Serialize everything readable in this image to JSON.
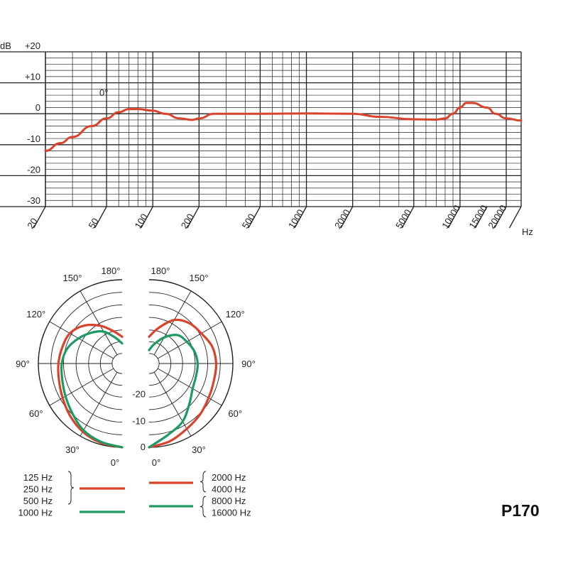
{
  "model": "P170",
  "colors": {
    "red": "#d9432b",
    "green": "#1e9a62",
    "grid": "#222222"
  },
  "chart_data": [
    {
      "type": "line",
      "x_unit_label": "Hz",
      "y_unit_label": "dB",
      "x_scale": "log",
      "xlim": [
        20,
        25000
      ],
      "ylim": [
        -30,
        20
      ],
      "grid": true,
      "x_ticks": [
        {
          "value": 20,
          "label": "20"
        },
        {
          "value": 50,
          "label": "50"
        },
        {
          "value": 100,
          "label": "100"
        },
        {
          "value": 200,
          "label": "200"
        },
        {
          "value": 500,
          "label": "500"
        },
        {
          "value": 1000,
          "label": "1000"
        },
        {
          "value": 2000,
          "label": "2000"
        },
        {
          "value": 5000,
          "label": "5000"
        },
        {
          "value": 10000,
          "label": "10000"
        },
        {
          "value": 15000,
          "label": "15000"
        },
        {
          "value": 20000,
          "label": "20000"
        }
      ],
      "y_ticks": [
        {
          "value": 20,
          "label": "+20"
        },
        {
          "value": 10,
          "label": "+10"
        },
        {
          "value": 0,
          "label": "0"
        },
        {
          "value": -10,
          "label": "-10"
        },
        {
          "value": -20,
          "label": "-20"
        },
        {
          "value": -30,
          "label": "-30"
        }
      ],
      "annotation": "0°",
      "series": [
        {
          "color": "#d9432b",
          "x": [
            20,
            25,
            30,
            40,
            50,
            60,
            70,
            80,
            100,
            120,
            150,
            180,
            200,
            250,
            300,
            500,
            1000,
            2000,
            3000,
            5000,
            7000,
            8000,
            9000,
            10000,
            11000,
            12000,
            15000,
            17000,
            20000,
            25000
          ],
          "y": [
            -12,
            -9.5,
            -7.5,
            -4,
            -1.5,
            0.5,
            1.5,
            1.5,
            1,
            0,
            -1.5,
            -2,
            -1.5,
            0,
            0,
            0,
            0.1,
            0,
            -1,
            -1.8,
            -1.9,
            -1.5,
            0,
            2,
            3.5,
            3.5,
            2,
            0,
            -1.5,
            -2.2
          ]
        }
      ]
    },
    {
      "type": "polar",
      "r_labels": [
        "-20",
        "-10",
        "0"
      ],
      "angle_labels_left": [
        "0°",
        "30°",
        "60°",
        "90°",
        "120°",
        "150°",
        "180°"
      ],
      "angle_labels_right": [
        "0°",
        "30°",
        "60°",
        "90°",
        "120°",
        "150°",
        "180°"
      ],
      "r_unit": "dB",
      "rlim": [
        -25,
        0
      ],
      "series": [
        {
          "side": "left",
          "color": "#d9432b",
          "frequencies": [
            "125 Hz",
            "250 Hz",
            "500 Hz"
          ],
          "angles": [
            0,
            15,
            30,
            45,
            60,
            75,
            90,
            105,
            120,
            135,
            150,
            165,
            180
          ],
          "db": [
            0,
            -0.5,
            -1.5,
            -3,
            -4.5,
            -5.5,
            -6,
            -6.5,
            -7,
            -9,
            -12,
            -15,
            -17
          ]
        },
        {
          "side": "left",
          "color": "#1e9a62",
          "frequencies": [
            "1000 Hz"
          ],
          "angles": [
            0,
            15,
            30,
            45,
            60,
            75,
            90,
            105,
            120,
            135,
            150,
            165,
            180
          ],
          "db": [
            0,
            -0.8,
            -2,
            -4,
            -5.5,
            -6.5,
            -7,
            -8,
            -10,
            -12,
            -14,
            -17,
            -19
          ]
        },
        {
          "side": "right",
          "color": "#d9432b",
          "frequencies": [
            "2000 Hz",
            "4000 Hz"
          ],
          "angles": [
            0,
            15,
            30,
            45,
            60,
            75,
            90,
            105,
            120,
            135,
            150,
            165,
            180
          ],
          "db": [
            0,
            -1,
            -2.5,
            -3.5,
            -4.5,
            -5,
            -5,
            -5.5,
            -7,
            -8,
            -10,
            -14,
            -17
          ]
        },
        {
          "side": "right",
          "color": "#1e9a62",
          "frequencies": [
            "8000 Hz",
            "16000 Hz"
          ],
          "angles": [
            0,
            15,
            30,
            45,
            60,
            75,
            90,
            105,
            120,
            135,
            150,
            165,
            180
          ],
          "db": [
            0,
            -3,
            -5,
            -8,
            -10,
            -10.5,
            -10.5,
            -11,
            -12,
            -13,
            -16,
            -19,
            -21
          ]
        }
      ]
    }
  ]
}
